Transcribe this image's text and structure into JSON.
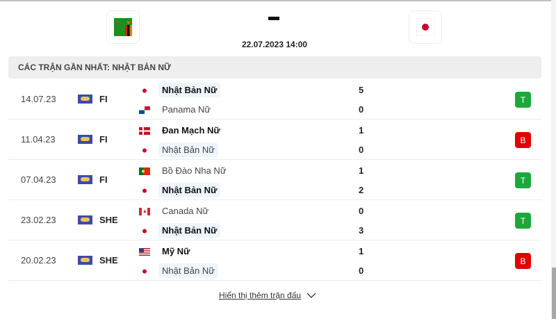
{
  "header": {
    "home_flag": "zambia",
    "away_flag": "japan",
    "score": "-",
    "datetime": "22.07.2023 14:00"
  },
  "section_title": "CÁC TRẬN GẦN NHẤT: NHẬT BẢN NỮ",
  "matches": [
    {
      "date": "14.07.23",
      "comp": "FI",
      "home": {
        "name": "Nhật Bản Nữ",
        "flag": "japan",
        "score": "5",
        "win": true,
        "highlight": true
      },
      "away": {
        "name": "Panama Nữ",
        "flag": "panama",
        "score": "0",
        "win": false,
        "highlight": false
      },
      "result": "T"
    },
    {
      "date": "11.04.23",
      "comp": "FI",
      "home": {
        "name": "Đan Mạch Nữ",
        "flag": "denmark",
        "score": "1",
        "win": true,
        "highlight": false
      },
      "away": {
        "name": "Nhật Bản Nữ",
        "flag": "japan",
        "score": "0",
        "win": false,
        "highlight": true
      },
      "result": "B"
    },
    {
      "date": "07.04.23",
      "comp": "FI",
      "home": {
        "name": "Bồ Đào Nha Nữ",
        "flag": "portugal",
        "score": "1",
        "win": false,
        "highlight": false
      },
      "away": {
        "name": "Nhật Bản Nữ",
        "flag": "japan",
        "score": "2",
        "win": true,
        "highlight": true
      },
      "result": "T"
    },
    {
      "date": "23.02.23",
      "comp": "SHE",
      "home": {
        "name": "Canada Nữ",
        "flag": "canada",
        "score": "0",
        "win": false,
        "highlight": false
      },
      "away": {
        "name": "Nhật Bản Nữ",
        "flag": "japan",
        "score": "3",
        "win": true,
        "highlight": true
      },
      "result": "T"
    },
    {
      "date": "20.02.23",
      "comp": "SHE",
      "home": {
        "name": "Mỹ Nữ",
        "flag": "usa",
        "score": "1",
        "win": true,
        "highlight": false
      },
      "away": {
        "name": "Nhật Bản Nữ",
        "flag": "japan",
        "score": "0",
        "win": false,
        "highlight": true
      },
      "result": "B"
    }
  ],
  "colors": {
    "T": "#1ea83c",
    "B": "#e00000"
  },
  "show_more": "Hiển thị thêm trận đấu"
}
